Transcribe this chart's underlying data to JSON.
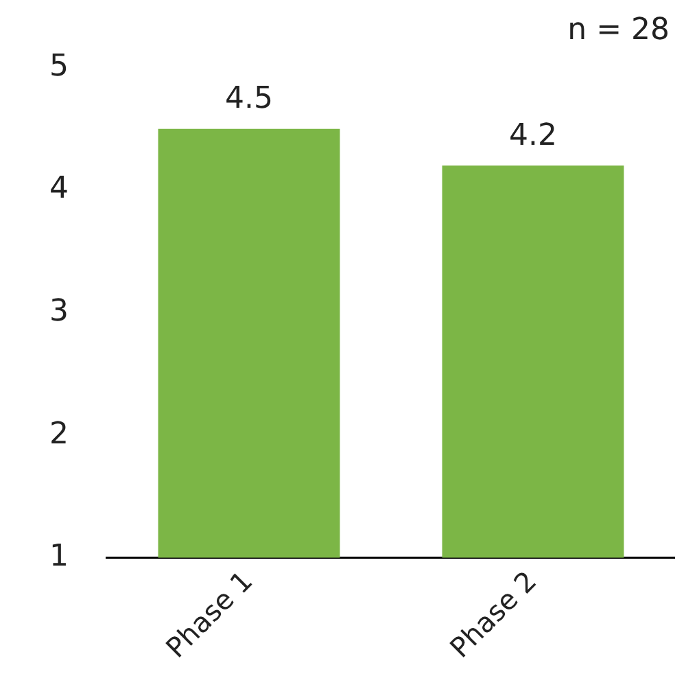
{
  "chart_data": {
    "type": "bar",
    "categories": [
      "Phase 1",
      "Phase 2"
    ],
    "values": [
      4.5,
      4.2
    ],
    "color": "#7cb646",
    "ylim": [
      1,
      5
    ],
    "yticks": [
      1,
      2,
      3,
      4,
      5
    ],
    "grid": false,
    "legend": false,
    "data_labels": true,
    "annotations": [
      "n = 28"
    ]
  }
}
